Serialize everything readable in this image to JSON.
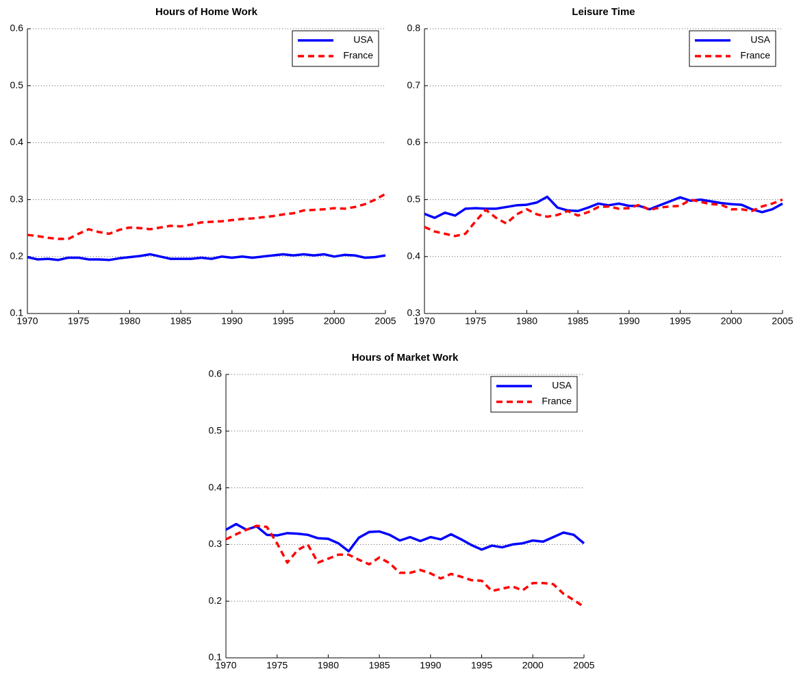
{
  "chart_data": [
    {
      "type": "line",
      "title": "Hours of Home Work",
      "x": [
        1970,
        1971,
        1972,
        1973,
        1974,
        1975,
        1976,
        1977,
        1978,
        1979,
        1980,
        1981,
        1982,
        1983,
        1984,
        1985,
        1986,
        1987,
        1988,
        1989,
        1990,
        1991,
        1992,
        1993,
        1994,
        1995,
        1996,
        1997,
        1998,
        1999,
        2000,
        2001,
        2002,
        2003,
        2004,
        2005
      ],
      "series": [
        {
          "name": "USA",
          "color": "#0000ff",
          "linestyle": "solid",
          "values": [
            0.199,
            0.195,
            0.196,
            0.194,
            0.198,
            0.198,
            0.195,
            0.195,
            0.194,
            0.197,
            0.199,
            0.201,
            0.204,
            0.2,
            0.196,
            0.196,
            0.196,
            0.198,
            0.196,
            0.2,
            0.198,
            0.2,
            0.198,
            0.2,
            0.202,
            0.204,
            0.202,
            0.204,
            0.202,
            0.204,
            0.2,
            0.203,
            0.202,
            0.198,
            0.199,
            0.202
          ]
        },
        {
          "name": "France",
          "color": "#ff0000",
          "linestyle": "dashed",
          "values": [
            0.238,
            0.236,
            0.233,
            0.231,
            0.231,
            0.24,
            0.248,
            0.243,
            0.24,
            0.247,
            0.251,
            0.25,
            0.248,
            0.251,
            0.254,
            0.253,
            0.256,
            0.26,
            0.261,
            0.262,
            0.264,
            0.266,
            0.267,
            0.269,
            0.271,
            0.274,
            0.276,
            0.281,
            0.282,
            0.283,
            0.285,
            0.284,
            0.287,
            0.292,
            0.3,
            0.31
          ]
        }
      ],
      "xlim": [
        1970,
        2005
      ],
      "xticks": [
        1970,
        1975,
        1980,
        1985,
        1990,
        1995,
        2000,
        2005
      ],
      "ylim": [
        0.1,
        0.6
      ],
      "yticks": [
        0.1,
        0.2,
        0.3,
        0.4,
        0.5,
        0.6
      ],
      "grid": true,
      "legend": "upper right"
    },
    {
      "type": "line",
      "title": "Leisure Time",
      "x": [
        1970,
        1971,
        1972,
        1973,
        1974,
        1975,
        1976,
        1977,
        1978,
        1979,
        1980,
        1981,
        1982,
        1983,
        1984,
        1985,
        1986,
        1987,
        1988,
        1989,
        1990,
        1991,
        1992,
        1993,
        1994,
        1995,
        1996,
        1997,
        1998,
        1999,
        2000,
        2001,
        2002,
        2003,
        2004,
        2005
      ],
      "series": [
        {
          "name": "USA",
          "color": "#0000ff",
          "linestyle": "solid",
          "values": [
            0.475,
            0.468,
            0.477,
            0.472,
            0.484,
            0.485,
            0.484,
            0.484,
            0.487,
            0.49,
            0.491,
            0.495,
            0.505,
            0.486,
            0.481,
            0.48,
            0.486,
            0.493,
            0.49,
            0.493,
            0.489,
            0.489,
            0.483,
            0.49,
            0.497,
            0.504,
            0.498,
            0.5,
            0.497,
            0.494,
            0.492,
            0.491,
            0.483,
            0.478,
            0.483,
            0.493
          ]
        },
        {
          "name": "France",
          "color": "#ff0000",
          "linestyle": "dashed",
          "values": [
            0.452,
            0.444,
            0.44,
            0.436,
            0.44,
            0.462,
            0.482,
            0.468,
            0.458,
            0.474,
            0.483,
            0.474,
            0.47,
            0.473,
            0.48,
            0.472,
            0.478,
            0.487,
            0.488,
            0.484,
            0.485,
            0.491,
            0.482,
            0.486,
            0.488,
            0.489,
            0.5,
            0.496,
            0.492,
            0.491,
            0.483,
            0.483,
            0.48,
            0.488,
            0.493,
            0.5
          ]
        }
      ],
      "xlim": [
        1970,
        2005
      ],
      "xticks": [
        1970,
        1975,
        1980,
        1985,
        1990,
        1995,
        2000,
        2005
      ],
      "ylim": [
        0.3,
        0.8
      ],
      "yticks": [
        0.3,
        0.4,
        0.5,
        0.6,
        0.7,
        0.8
      ],
      "grid": true,
      "legend": "upper right"
    },
    {
      "type": "line",
      "title": "Hours of Market Work",
      "x": [
        1970,
        1971,
        1972,
        1973,
        1974,
        1975,
        1976,
        1977,
        1978,
        1979,
        1980,
        1981,
        1982,
        1983,
        1984,
        1985,
        1986,
        1987,
        1988,
        1989,
        1990,
        1991,
        1992,
        1993,
        1994,
        1995,
        1996,
        1997,
        1998,
        1999,
        2000,
        2001,
        2002,
        2003,
        2004,
        2005
      ],
      "series": [
        {
          "name": "USA",
          "color": "#0000ff",
          "linestyle": "solid",
          "values": [
            0.326,
            0.336,
            0.326,
            0.332,
            0.317,
            0.316,
            0.32,
            0.319,
            0.317,
            0.311,
            0.31,
            0.302,
            0.288,
            0.312,
            0.322,
            0.323,
            0.317,
            0.307,
            0.313,
            0.306,
            0.313,
            0.309,
            0.318,
            0.309,
            0.299,
            0.291,
            0.298,
            0.295,
            0.3,
            0.302,
            0.307,
            0.305,
            0.313,
            0.321,
            0.317,
            0.302
          ]
        },
        {
          "name": "France",
          "color": "#ff0000",
          "linestyle": "dashed",
          "values": [
            0.309,
            0.318,
            0.326,
            0.333,
            0.331,
            0.302,
            0.268,
            0.29,
            0.3,
            0.268,
            0.275,
            0.282,
            0.282,
            0.273,
            0.265,
            0.277,
            0.267,
            0.25,
            0.25,
            0.255,
            0.249,
            0.24,
            0.248,
            0.243,
            0.237,
            0.236,
            0.218,
            0.222,
            0.226,
            0.219,
            0.232,
            0.232,
            0.23,
            0.213,
            0.202,
            0.19
          ]
        }
      ],
      "xlim": [
        1970,
        2005
      ],
      "xticks": [
        1970,
        1975,
        1980,
        1985,
        1990,
        1995,
        2000,
        2005
      ],
      "ylim": [
        0.1,
        0.6
      ],
      "yticks": [
        0.1,
        0.2,
        0.3,
        0.4,
        0.5,
        0.6
      ],
      "grid": true,
      "legend": "upper right"
    }
  ]
}
